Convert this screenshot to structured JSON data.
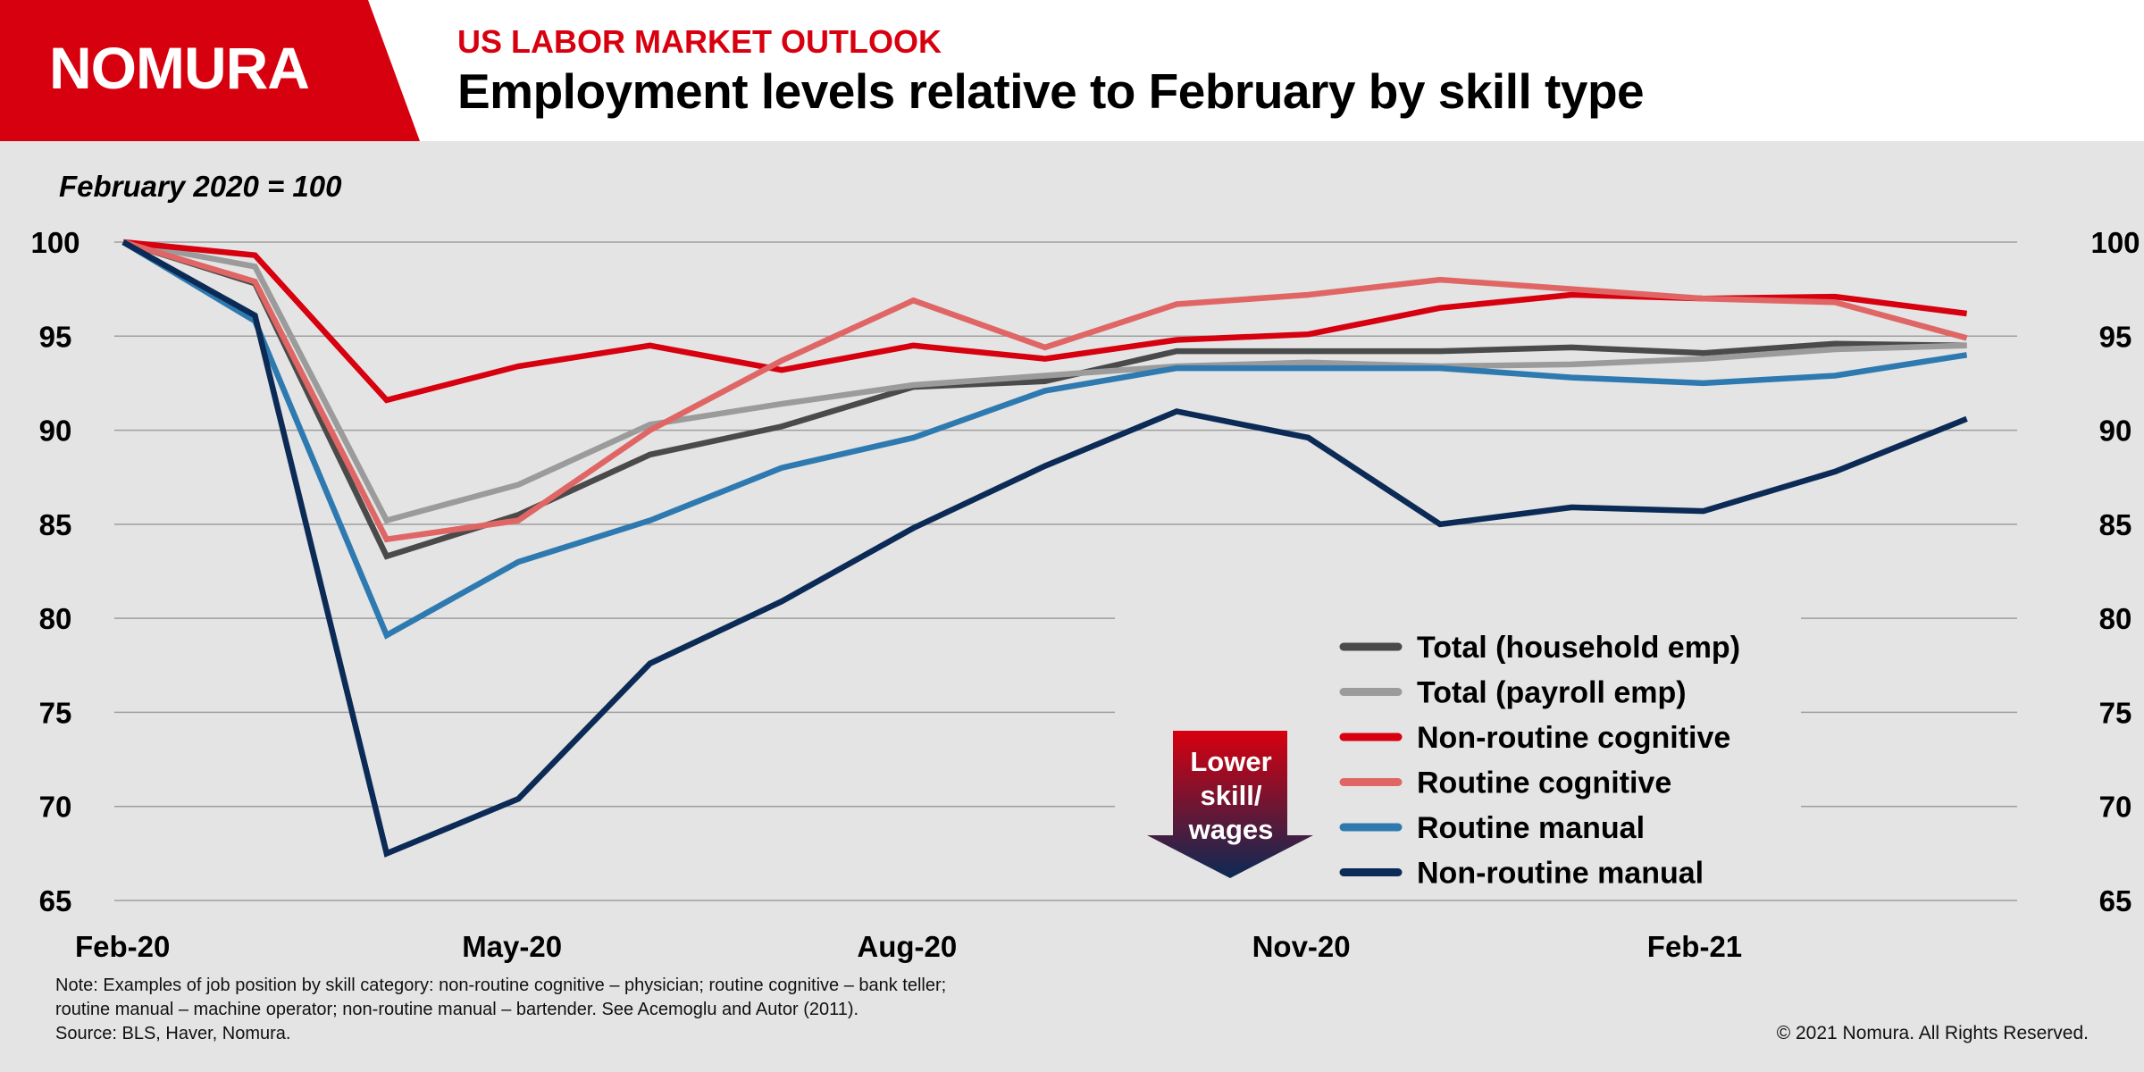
{
  "logo": "NOMURA",
  "header": {
    "kicker": "US LABOR MARKET OUTLOOK",
    "title": "Employment levels relative to February by skill type"
  },
  "colors": {
    "brand_red": "#d7000f",
    "background": "#e4e4e4",
    "arrow_top": "#d7000f",
    "arrow_bottom": "#0b2a55"
  },
  "annotation": {
    "lines": [
      "Lower",
      "skill/",
      "wages"
    ]
  },
  "notes": [
    "Note: Examples of job position by skill category: non-routine cognitive – physician; routine cognitive – bank teller;",
    "routine manual – machine operator; non-routine manual – bartender. See Acemoglu and Autor (2011).",
    "Source: BLS, Haver, Nomura."
  ],
  "copyright": "© 2021 Nomura. All Rights Reserved.",
  "chart_data": {
    "type": "line",
    "subtitle": "February 2020 = 100",
    "x": [
      "Feb-20",
      "Mar-20",
      "Apr-20",
      "May-20",
      "Jun-20",
      "Jul-20",
      "Aug-20",
      "Sep-20",
      "Oct-20",
      "Nov-20",
      "Dec-20",
      "Jan-21",
      "Feb-21",
      "Mar-21",
      "Apr-21"
    ],
    "x_tick_labels": [
      "Feb-20",
      "May-20",
      "Aug-20",
      "Nov-20",
      "Feb-21"
    ],
    "x_tick_indices": [
      0,
      3,
      6,
      9,
      12
    ],
    "ylim": [
      65,
      100
    ],
    "yticks": [
      65,
      70,
      75,
      80,
      85,
      90,
      95,
      100
    ],
    "grid": true,
    "dual_y_axis": true,
    "legend_position": "bottom-right",
    "series": [
      {
        "name": "Total (household emp)",
        "color": "#4a4a4a",
        "values": [
          100,
          97.8,
          83.3,
          85.5,
          88.7,
          90.2,
          92.3,
          92.6,
          94.2,
          94.2,
          94.2,
          94.4,
          94.1,
          94.6,
          94.5
        ]
      },
      {
        "name": "Total (payroll emp)",
        "color": "#9b9b9b",
        "values": [
          100,
          98.7,
          85.2,
          87.1,
          90.3,
          91.4,
          92.4,
          92.9,
          93.4,
          93.6,
          93.4,
          93.5,
          93.8,
          94.3,
          94.5
        ]
      },
      {
        "name": "Non-routine cognitive",
        "color": "#d7000f",
        "values": [
          100,
          99.3,
          91.6,
          93.4,
          94.5,
          93.2,
          94.5,
          93.8,
          94.8,
          95.1,
          96.5,
          97.2,
          97.0,
          97.1,
          96.2
        ]
      },
      {
        "name": "Routine cognitive",
        "color": "#e06666",
        "values": [
          100,
          97.9,
          84.2,
          85.2,
          90.0,
          93.7,
          96.9,
          94.4,
          96.7,
          97.2,
          98.0,
          97.5,
          97.0,
          96.8,
          94.9
        ]
      },
      {
        "name": "Routine manual",
        "color": "#2e7ab0",
        "values": [
          100,
          95.8,
          79.1,
          83.0,
          85.2,
          88.0,
          89.6,
          92.1,
          93.3,
          93.3,
          93.3,
          92.8,
          92.5,
          92.9,
          94.0
        ]
      },
      {
        "name": "Non-routine manual",
        "color": "#0b2a55",
        "values": [
          100,
          96.1,
          67.5,
          70.4,
          77.6,
          80.9,
          84.8,
          88.1,
          91.0,
          89.6,
          85.0,
          85.9,
          85.7,
          87.8,
          90.6
        ]
      }
    ]
  }
}
